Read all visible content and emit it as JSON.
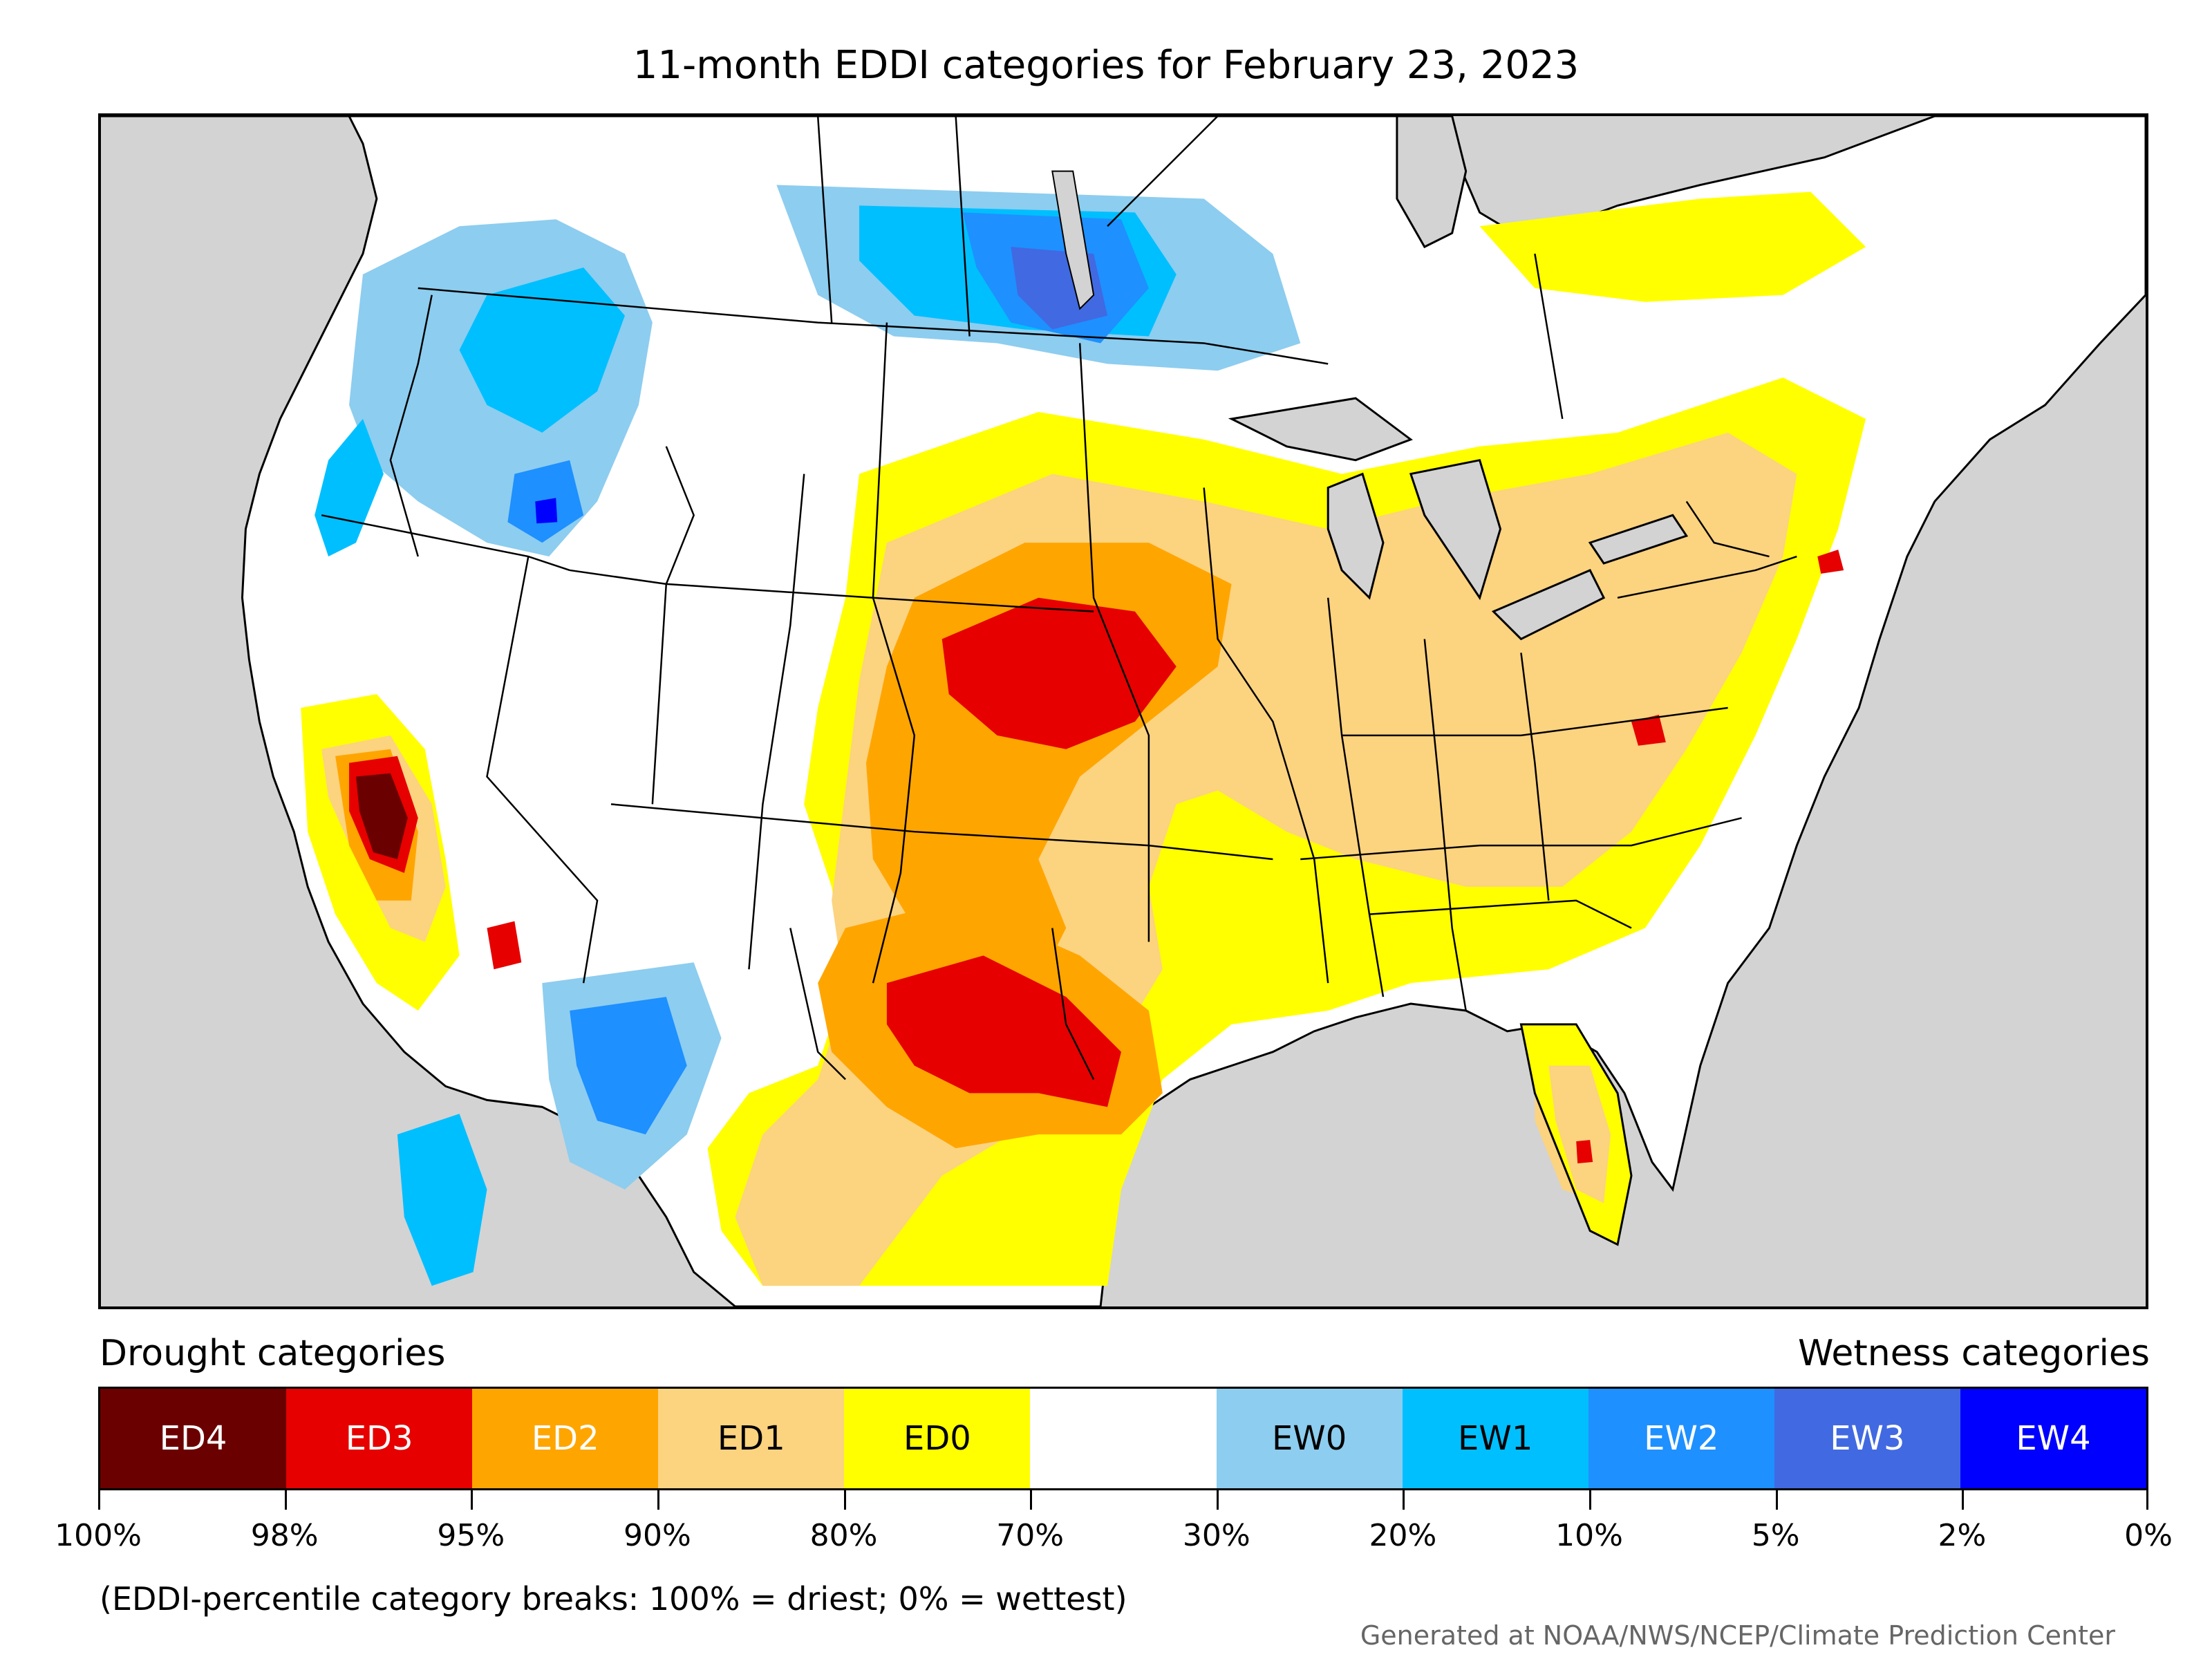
{
  "title": "11-month EDDI categories for February 23, 2023",
  "legend": {
    "drought_heading": "Drought categories",
    "wetness_heading": "Wetness categories",
    "categories": [
      {
        "label": "ED4",
        "color": "#6b0000",
        "text_color": "#ffffff"
      },
      {
        "label": "ED3",
        "color": "#e60000",
        "text_color": "#ffffff"
      },
      {
        "label": "ED2",
        "color": "#ffa500",
        "text_color": "#ffffff"
      },
      {
        "label": "ED1",
        "color": "#fcd37f",
        "text_color": "#000000"
      },
      {
        "label": "ED0",
        "color": "#ffff00",
        "text_color": "#000000"
      },
      {
        "label": "",
        "color": "#ffffff",
        "text_color": "#000000"
      },
      {
        "label": "EW0",
        "color": "#8dcdef",
        "text_color": "#000000"
      },
      {
        "label": "EW1",
        "color": "#00bfff",
        "text_color": "#000000"
      },
      {
        "label": "EW2",
        "color": "#1e90ff",
        "text_color": "#ffffff"
      },
      {
        "label": "EW3",
        "color": "#4169e1",
        "text_color": "#ffffff"
      },
      {
        "label": "EW4",
        "color": "#0000ff",
        "text_color": "#ffffff"
      }
    ],
    "tick_labels": [
      "100%",
      "98%",
      "95%",
      "90%",
      "80%",
      "70%",
      "30%",
      "20%",
      "10%",
      "5%",
      "2%",
      "0%"
    ]
  },
  "note": "(EDDI-percentile category breaks: 100% = driest; 0% = wettest)",
  "credit": "Generated at NOAA/NWS/NCEP/Climate Prediction Center"
}
